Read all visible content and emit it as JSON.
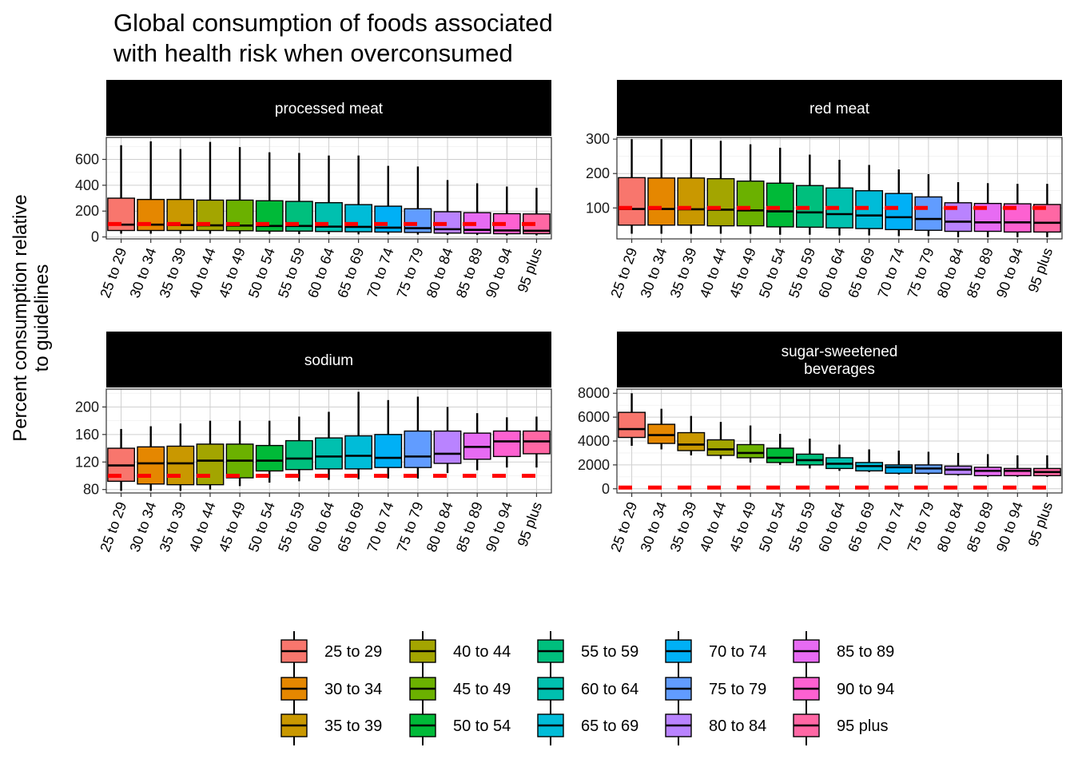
{
  "title": [
    "Global consumption of foods associated",
    "with health risk when overconsumed"
  ],
  "ylabel": [
    "Percent consumption relative",
    "to guidelines"
  ],
  "legend": {
    "items": [
      {
        "label": "25 to 29",
        "color": "#F8766D"
      },
      {
        "label": "30 to 34",
        "color": "#E58700"
      },
      {
        "label": "35 to 39",
        "color": "#C99800"
      },
      {
        "label": "40 to 44",
        "color": "#A3A500"
      },
      {
        "label": "45 to 49",
        "color": "#6BB100"
      },
      {
        "label": "50 to 54",
        "color": "#00BA38"
      },
      {
        "label": "55 to 59",
        "color": "#00BF7D"
      },
      {
        "label": "60 to 64",
        "color": "#00C0AF"
      },
      {
        "label": "65 to 69",
        "color": "#00BCD8"
      },
      {
        "label": "70 to 74",
        "color": "#00B0F6"
      },
      {
        "label": "75 to 79",
        "color": "#619CFF"
      },
      {
        "label": "80 to 84",
        "color": "#B983FF"
      },
      {
        "label": "85 to 89",
        "color": "#E76BF3"
      },
      {
        "label": "90 to 94",
        "color": "#FD61D1"
      },
      {
        "label": "95 plus",
        "color": "#FF67A4"
      }
    ]
  },
  "chart_data": [
    {
      "type": "box",
      "facet": "processed meat",
      "categories": [
        "25 to 29",
        "30 to 34",
        "35 to 39",
        "40 to 44",
        "45 to 49",
        "50 to 54",
        "55 to 59",
        "60 to 64",
        "65 to 69",
        "70 to 74",
        "75 to 79",
        "80 to 84",
        "85 to 89",
        "90 to 94",
        "95 plus"
      ],
      "ylim": [
        -15,
        770
      ],
      "yticks": [
        0,
        200,
        400,
        600
      ],
      "reference_line": 100,
      "boxes": [
        {
          "min": 25,
          "q1": 50,
          "median": 95,
          "q3": 300,
          "max": 710
        },
        {
          "min": 25,
          "q1": 50,
          "median": 95,
          "q3": 290,
          "max": 740
        },
        {
          "min": 25,
          "q1": 50,
          "median": 92,
          "q3": 290,
          "max": 680
        },
        {
          "min": 25,
          "q1": 50,
          "median": 90,
          "q3": 285,
          "max": 735
        },
        {
          "min": 25,
          "q1": 48,
          "median": 88,
          "q3": 285,
          "max": 695
        },
        {
          "min": 25,
          "q1": 45,
          "median": 85,
          "q3": 280,
          "max": 655
        },
        {
          "min": 22,
          "q1": 45,
          "median": 85,
          "q3": 275,
          "max": 650
        },
        {
          "min": 22,
          "q1": 42,
          "median": 80,
          "q3": 265,
          "max": 630
        },
        {
          "min": 20,
          "q1": 40,
          "median": 78,
          "q3": 250,
          "max": 630
        },
        {
          "min": 20,
          "q1": 38,
          "median": 72,
          "q3": 238,
          "max": 550
        },
        {
          "min": 18,
          "q1": 35,
          "median": 68,
          "q3": 218,
          "max": 545
        },
        {
          "min": 15,
          "q1": 30,
          "median": 60,
          "q3": 195,
          "max": 440
        },
        {
          "min": 15,
          "q1": 28,
          "median": 55,
          "q3": 188,
          "max": 415
        },
        {
          "min": 12,
          "q1": 25,
          "median": 50,
          "q3": 180,
          "max": 390
        },
        {
          "min": 12,
          "q1": 25,
          "median": 48,
          "q3": 178,
          "max": 380
        }
      ]
    },
    {
      "type": "box",
      "facet": "red meat",
      "categories": [
        "25 to 29",
        "30 to 34",
        "35 to 39",
        "40 to 44",
        "45 to 49",
        "50 to 54",
        "55 to 59",
        "60 to 64",
        "65 to 69",
        "70 to 74",
        "75 to 79",
        "80 to 84",
        "85 to 89",
        "90 to 94",
        "95 plus"
      ],
      "ylim": [
        10,
        305
      ],
      "yticks": [
        100,
        200,
        300
      ],
      "reference_line": 100,
      "boxes": [
        {
          "min": 25,
          "q1": 50,
          "median": 97,
          "q3": 188,
          "max": 300
        },
        {
          "min": 25,
          "q1": 50,
          "median": 97,
          "q3": 187,
          "max": 300
        },
        {
          "min": 25,
          "q1": 50,
          "median": 96,
          "q3": 187,
          "max": 300
        },
        {
          "min": 25,
          "q1": 48,
          "median": 95,
          "q3": 185,
          "max": 295
        },
        {
          "min": 25,
          "q1": 48,
          "median": 93,
          "q3": 178,
          "max": 285
        },
        {
          "min": 22,
          "q1": 45,
          "median": 90,
          "q3": 172,
          "max": 275
        },
        {
          "min": 22,
          "q1": 44,
          "median": 87,
          "q3": 165,
          "max": 255
        },
        {
          "min": 20,
          "q1": 42,
          "median": 82,
          "q3": 158,
          "max": 240
        },
        {
          "min": 20,
          "q1": 40,
          "median": 78,
          "q3": 150,
          "max": 225
        },
        {
          "min": 18,
          "q1": 37,
          "median": 73,
          "q3": 142,
          "max": 212
        },
        {
          "min": 18,
          "q1": 35,
          "median": 68,
          "q3": 132,
          "max": 198
        },
        {
          "min": 15,
          "q1": 32,
          "median": 60,
          "q3": 115,
          "max": 175
        },
        {
          "min": 15,
          "q1": 32,
          "median": 58,
          "q3": 113,
          "max": 172
        },
        {
          "min": 15,
          "q1": 30,
          "median": 58,
          "q3": 112,
          "max": 170
        },
        {
          "min": 15,
          "q1": 30,
          "median": 57,
          "q3": 110,
          "max": 170
        }
      ]
    },
    {
      "type": "box",
      "facet": "sodium",
      "categories": [
        "25 to 29",
        "30 to 34",
        "35 to 39",
        "40 to 44",
        "45 to 49",
        "50 to 54",
        "55 to 59",
        "60 to 64",
        "65 to 69",
        "70 to 74",
        "75 to 79",
        "80 to 84",
        "85 to 89",
        "90 to 94",
        "95 plus"
      ],
      "ylim": [
        75,
        226
      ],
      "yticks": [
        80,
        120,
        160,
        200
      ],
      "reference_line": 100,
      "boxes": [
        {
          "min": 78,
          "q1": 92,
          "median": 115,
          "q3": 140,
          "max": 168
        },
        {
          "min": 78,
          "q1": 88,
          "median": 118,
          "q3": 142,
          "max": 172
        },
        {
          "min": 78,
          "q1": 87,
          "median": 118,
          "q3": 143,
          "max": 176
        },
        {
          "min": 80,
          "q1": 87,
          "median": 122,
          "q3": 146,
          "max": 180
        },
        {
          "min": 85,
          "q1": 97,
          "median": 122,
          "q3": 146,
          "max": 180
        },
        {
          "min": 90,
          "q1": 107,
          "median": 122,
          "q3": 144,
          "max": 180
        },
        {
          "min": 92,
          "q1": 109,
          "median": 125,
          "q3": 151,
          "max": 186
        },
        {
          "min": 94,
          "q1": 110,
          "median": 128,
          "q3": 155,
          "max": 193
        },
        {
          "min": 95,
          "q1": 110,
          "median": 129,
          "q3": 158,
          "max": 222
        },
        {
          "min": 96,
          "q1": 112,
          "median": 126,
          "q3": 160,
          "max": 210
        },
        {
          "min": 96,
          "q1": 112,
          "median": 128,
          "q3": 165,
          "max": 215
        },
        {
          "min": 104,
          "q1": 118,
          "median": 132,
          "q3": 165,
          "max": 200
        },
        {
          "min": 108,
          "q1": 124,
          "median": 142,
          "q3": 162,
          "max": 191
        },
        {
          "min": 112,
          "q1": 128,
          "median": 150,
          "q3": 165,
          "max": 185
        },
        {
          "min": 112,
          "q1": 132,
          "median": 150,
          "q3": 165,
          "max": 186
        }
      ]
    },
    {
      "type": "box",
      "facet": "sugar-sweetened beverages",
      "facet_lines": [
        "sugar-sweetened",
        "beverages"
      ],
      "categories": [
        "25 to 29",
        "30 to 34",
        "35 to 39",
        "40 to 44",
        "45 to 49",
        "50 to 54",
        "55 to 59",
        "60 to 64",
        "65 to 69",
        "70 to 74",
        "75 to 79",
        "80 to 84",
        "85 to 89",
        "90 to 94",
        "95 plus"
      ],
      "ylim": [
        -350,
        8350
      ],
      "yticks": [
        0,
        2000,
        4000,
        6000,
        8000
      ],
      "reference_line": 100,
      "boxes": [
        {
          "min": 3600,
          "q1": 4300,
          "median": 5000,
          "q3": 6400,
          "max": 8000
        },
        {
          "min": 3300,
          "q1": 3800,
          "median": 4500,
          "q3": 5400,
          "max": 6700
        },
        {
          "min": 2800,
          "q1": 3200,
          "median": 3700,
          "q3": 4700,
          "max": 6100
        },
        {
          "min": 2500,
          "q1": 2800,
          "median": 3300,
          "q3": 4100,
          "max": 5600
        },
        {
          "min": 2200,
          "q1": 2600,
          "median": 3000,
          "q3": 3700,
          "max": 5300
        },
        {
          "min": 2000,
          "q1": 2200,
          "median": 2600,
          "q3": 3400,
          "max": 4600
        },
        {
          "min": 1700,
          "q1": 2000,
          "median": 2400,
          "q3": 2900,
          "max": 4200
        },
        {
          "min": 1500,
          "q1": 1700,
          "median": 2100,
          "q3": 2600,
          "max": 3700
        },
        {
          "min": 1400,
          "q1": 1500,
          "median": 1900,
          "q3": 2200,
          "max": 3300
        },
        {
          "min": 1200,
          "q1": 1300,
          "median": 1800,
          "q3": 2000,
          "max": 3200
        },
        {
          "min": 1200,
          "q1": 1300,
          "median": 1700,
          "q3": 2000,
          "max": 3100
        },
        {
          "min": 1100,
          "q1": 1200,
          "median": 1600,
          "q3": 1900,
          "max": 3000
        },
        {
          "min": 1000,
          "q1": 1100,
          "median": 1500,
          "q3": 1800,
          "max": 2900
        },
        {
          "min": 1000,
          "q1": 1100,
          "median": 1500,
          "q3": 1700,
          "max": 2800
        },
        {
          "min": 1000,
          "q1": 1100,
          "median": 1400,
          "q3": 1700,
          "max": 2800
        }
      ]
    }
  ]
}
